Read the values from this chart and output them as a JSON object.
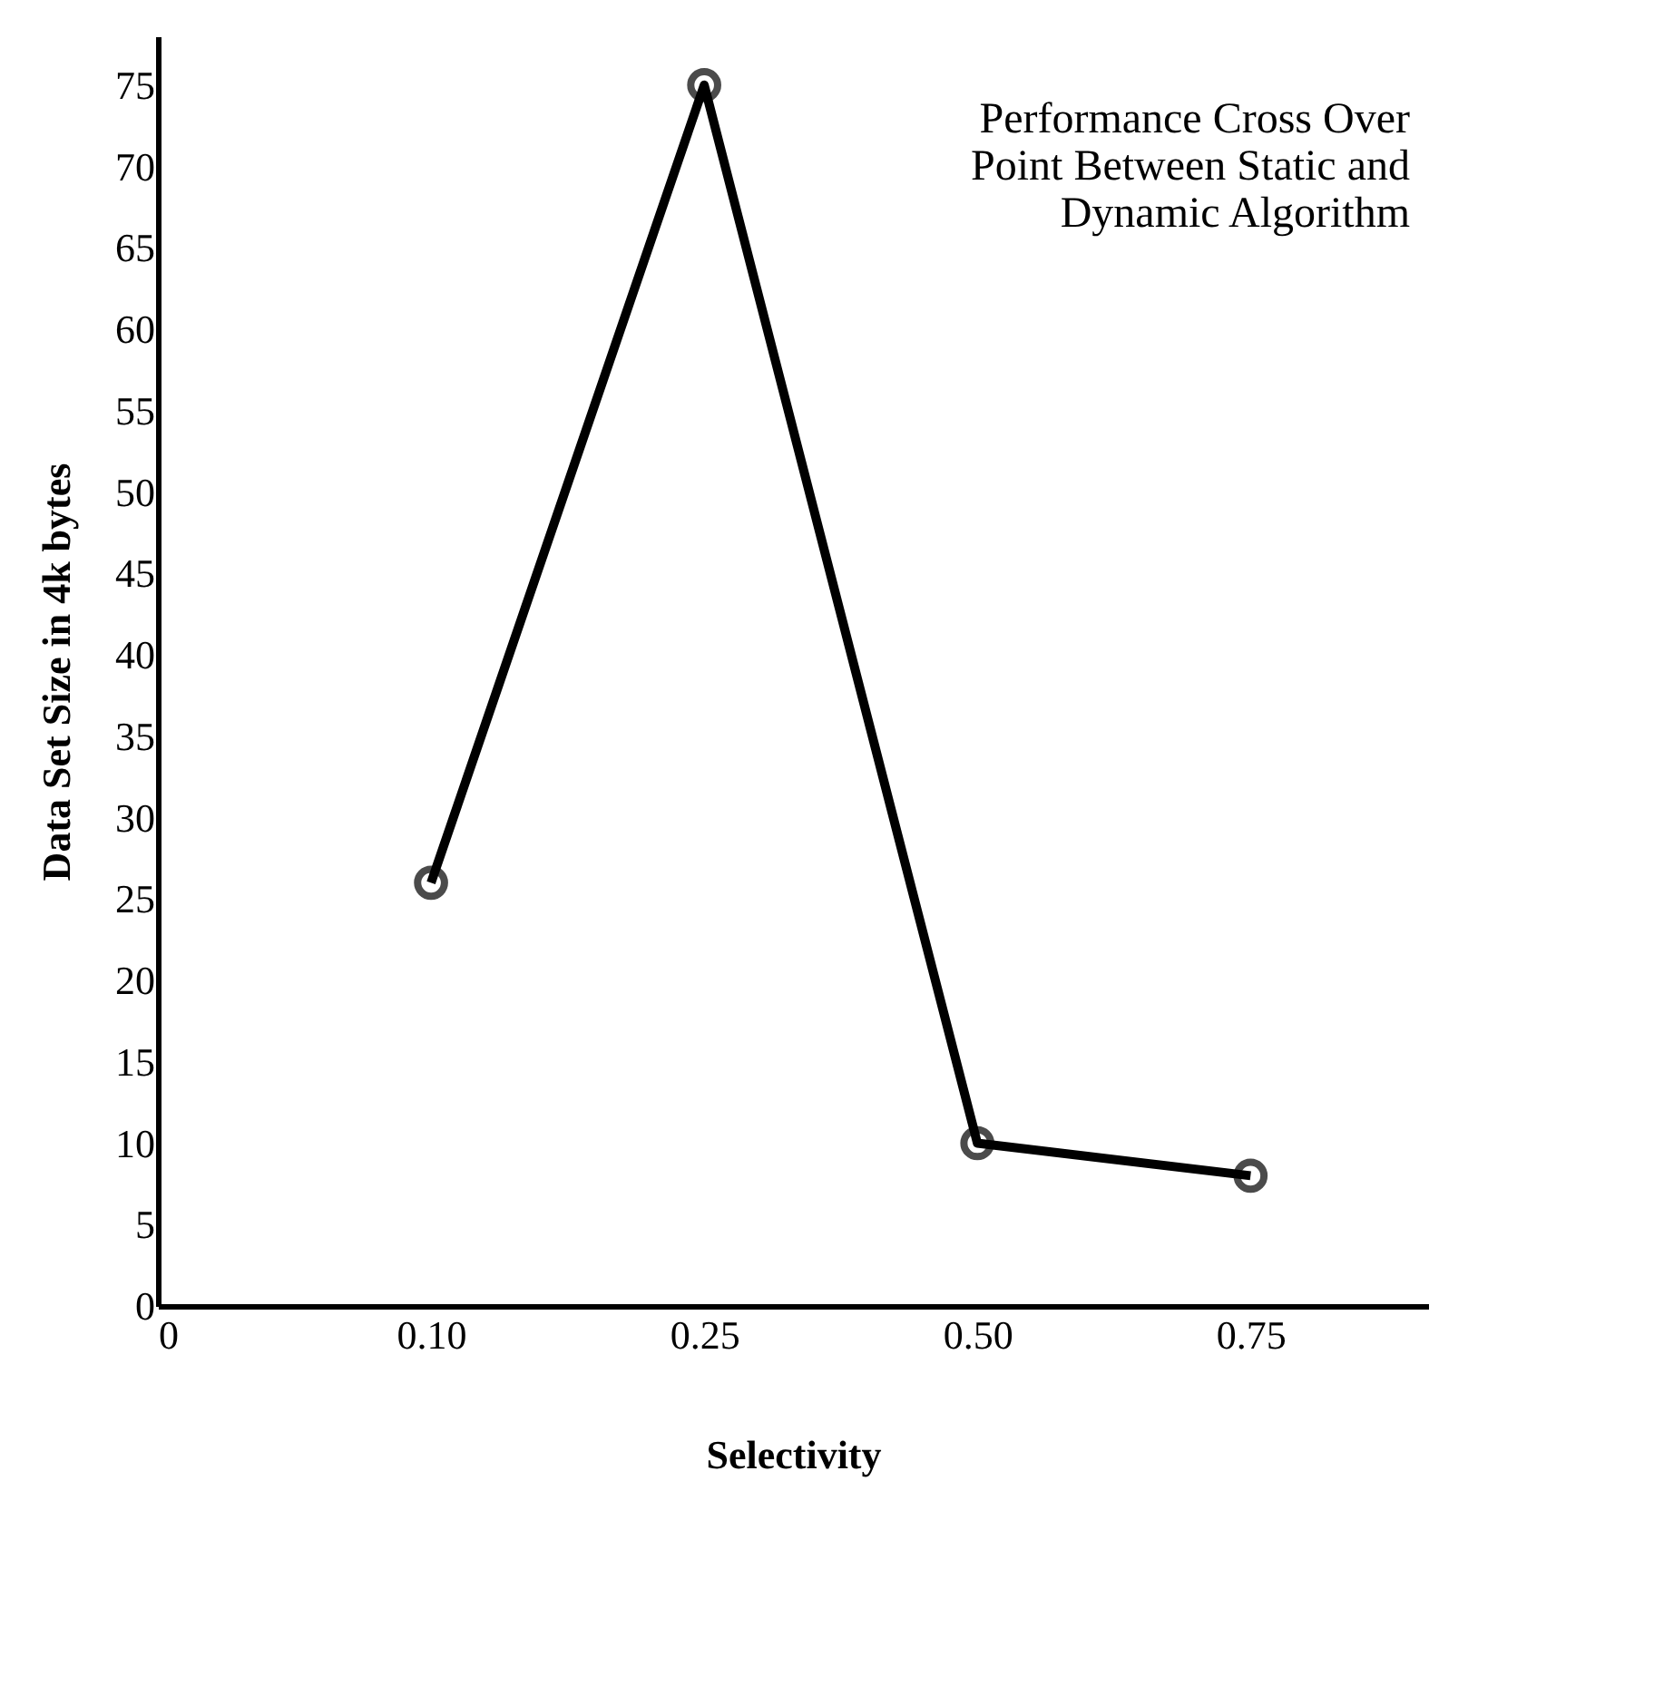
{
  "chart_data": {
    "type": "line",
    "title": "Performance Cross Over Point Between Static and Dynamic Algorithm",
    "xlabel": "Selectivity",
    "ylabel": "Data Set Size in 4k bytes",
    "categories": [
      "0",
      "0.10",
      "0.25",
      "0.50",
      "0.75"
    ],
    "series": [
      {
        "color": "#000000",
        "values": [
          null,
          26,
          75,
          10,
          8
        ]
      }
    ],
    "ylim": [
      0,
      78
    ],
    "yticks": [
      0,
      5,
      10,
      15,
      20,
      25,
      30,
      35,
      40,
      45,
      50,
      55,
      60,
      65,
      70,
      75
    ],
    "grid": false,
    "marker": "circle",
    "line_style": "solid"
  }
}
